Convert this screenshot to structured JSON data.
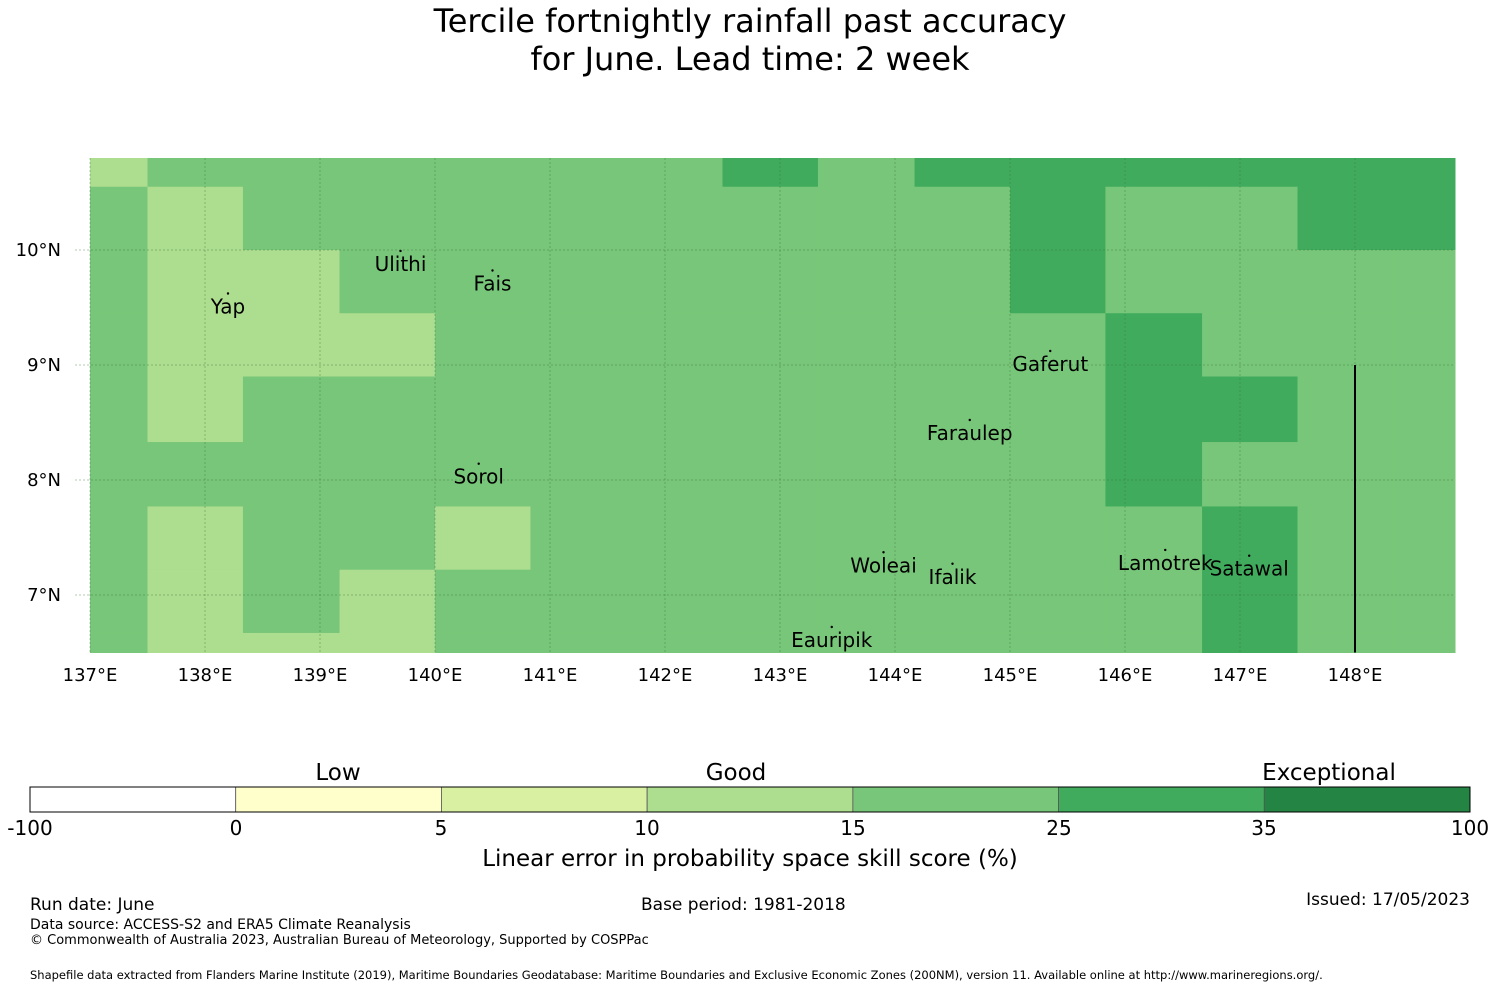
{
  "title": {
    "line1": "Tercile fortnightly rainfall past accuracy",
    "line2": "for June. Lead time: 2 week"
  },
  "map": {
    "lon_range": [
      137,
      149
    ],
    "lat_range": [
      6.5,
      10.8
    ],
    "x_ticks": [
      "137°E",
      "138°E",
      "139°E",
      "140°E",
      "141°E",
      "142°E",
      "143°E",
      "144°E",
      "145°E",
      "146°E",
      "147°E",
      "148°E"
    ],
    "y_ticks": [
      "10°N",
      "9°N",
      "8°N",
      "7°N"
    ],
    "grid": true,
    "colors": {
      "c10": "#addd8e",
      "c15": "#78c679",
      "c25": "#41ab5d"
    },
    "grid_cells": {
      "description_cols_lon_edges": [
        137,
        137.5,
        138.33,
        139.17,
        140,
        140.83,
        141.67,
        142.5,
        143.33,
        144.17,
        145,
        145.83,
        146.67,
        147.5,
        148.33,
        149
      ],
      "row_lat_edges": [
        10.8,
        10.55,
        10,
        9.45,
        8.9,
        8.33,
        7.77,
        7.22,
        6.67,
        6.5
      ],
      "rows": [
        [
          "c10",
          "c15",
          "c15",
          "c15",
          "c15",
          "c15",
          "c15",
          "c25",
          "c15",
          "c25",
          "c25",
          "c25",
          "c25",
          "c25",
          "c25"
        ],
        [
          "c15",
          "c10",
          "c15",
          "c15",
          "c15",
          "c15",
          "c15",
          "c15",
          "c15",
          "c15",
          "c25",
          "c15",
          "c15",
          "c25",
          "c25"
        ],
        [
          "c15",
          "c10",
          "c10",
          "c15",
          "c15",
          "c15",
          "c15",
          "c15",
          "c15",
          "c15",
          "c25",
          "c15",
          "c15",
          "c15",
          "c15"
        ],
        [
          "c15",
          "c10",
          "c10",
          "c10",
          "c15",
          "c15",
          "c15",
          "c15",
          "c15",
          "c15",
          "c15",
          "c25",
          "c15",
          "c15",
          "c15"
        ],
        [
          "c15",
          "c10",
          "c15",
          "c15",
          "c15",
          "c15",
          "c15",
          "c15",
          "c15",
          "c15",
          "c15",
          "c25",
          "c25",
          "c15",
          "c15"
        ],
        [
          "c15",
          "c15",
          "c15",
          "c15",
          "c15",
          "c15",
          "c15",
          "c15",
          "c15",
          "c15",
          "c15",
          "c25",
          "c15",
          "c15",
          "c15"
        ],
        [
          "c15",
          "c10",
          "c15",
          "c15",
          "c10",
          "c15",
          "c15",
          "c15",
          "c15",
          "c15",
          "c15",
          "c15",
          "c25",
          "c15",
          "c15"
        ],
        [
          "c15",
          "c10",
          "c15",
          "c10",
          "c15",
          "c15",
          "c15",
          "c15",
          "c15",
          "c15",
          "c15",
          "c15",
          "c25",
          "c15",
          "c15"
        ],
        [
          "c15",
          "c10",
          "c10",
          "c10",
          "c15",
          "c15",
          "c15",
          "c15",
          "c15",
          "c15",
          "c15",
          "c15",
          "c25",
          "c15",
          "c15"
        ]
      ]
    },
    "islands": [
      {
        "name": "Ulithi",
        "lon": 139.7,
        "lat": 9.87
      },
      {
        "name": "Fais",
        "lon": 140.5,
        "lat": 9.7
      },
      {
        "name": "Yap",
        "lon": 138.2,
        "lat": 9.5
      },
      {
        "name": "Gaferut",
        "lon": 145.35,
        "lat": 9.0
      },
      {
        "name": "Faraulep",
        "lon": 144.65,
        "lat": 8.4
      },
      {
        "name": "Sorol",
        "lon": 140.38,
        "lat": 8.02
      },
      {
        "name": "Woleai",
        "lon": 143.9,
        "lat": 7.25
      },
      {
        "name": "Ifalik",
        "lon": 144.5,
        "lat": 7.15
      },
      {
        "name": "Lamotrek",
        "lon": 146.35,
        "lat": 7.27
      },
      {
        "name": "Satawal",
        "lon": 147.08,
        "lat": 7.22
      },
      {
        "name": "Eauripik",
        "lon": 143.45,
        "lat": 6.6
      }
    ],
    "boundary_line_lon": 148,
    "boundary_line_lat_range": [
      6.5,
      9.0
    ]
  },
  "colorbar": {
    "categories": [
      "Low",
      "Good",
      "Exceptional"
    ],
    "ticks": [
      "-100",
      "0",
      "5",
      "10",
      "15",
      "25",
      "35",
      "100"
    ],
    "colors": [
      "#ffffff",
      "#ffffcc",
      "#d9f0a3",
      "#addd8e",
      "#78c679",
      "#41ab5d",
      "#238443"
    ],
    "label": "Linear error in probability space skill score (%)"
  },
  "footer": {
    "run_date": "Run date: June",
    "base_period": "Base period: 1981-2018",
    "issued": "Issued: 17/05/2023",
    "data_source": "Data source: ACCESS-S2 and ERA5 Climate Reanalysis",
    "copyright": "© Commonwealth of Australia 2023, Australian Bureau of Meteorology, Supported by COSPPac",
    "shapefile": "Shapefile data extracted from Flanders Marine Institute (2019), Maritime Boundaries Geodatabase: Maritime Boundaries and Exclusive Economic Zones (200NM), version 11. Available online at http://www.marineregions.org/."
  }
}
